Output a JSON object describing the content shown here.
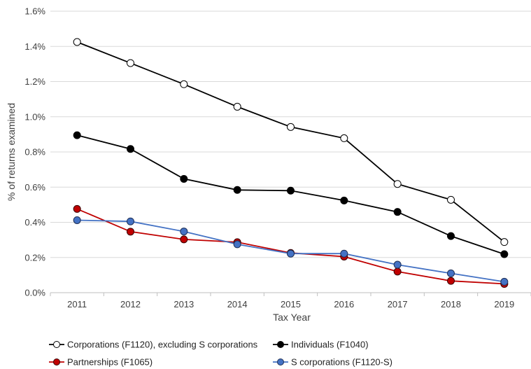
{
  "chart_data": {
    "type": "line",
    "title": "",
    "xlabel": "Tax Year",
    "ylabel": "% of returns examined",
    "x": [
      "2011",
      "2012",
      "2013",
      "2014",
      "2015",
      "2016",
      "2017",
      "2018",
      "2019"
    ],
    "ylim": [
      0,
      1.6
    ],
    "ytick_step": 0.2,
    "ytick_labels": [
      "0.0%",
      "0.2%",
      "0.4%",
      "0.6%",
      "0.8%",
      "1.0%",
      "1.2%",
      "1.4%",
      "1.6%"
    ],
    "grid": "horizontal",
    "legend_position": "bottom",
    "series": [
      {
        "name": "Corporations (F1120), excluding S corporations",
        "line_color": "#000000",
        "marker_fill": "#ffffff",
        "marker_edge": "#000000",
        "values": [
          1.425,
          1.305,
          1.185,
          1.057,
          0.942,
          0.878,
          0.618,
          0.528,
          0.288
        ]
      },
      {
        "name": "Individuals (F1040)",
        "line_color": "#000000",
        "marker_fill": "#000000",
        "marker_edge": "#000000",
        "values": [
          0.895,
          0.817,
          0.647,
          0.584,
          0.58,
          0.524,
          0.459,
          0.322,
          0.219
        ]
      },
      {
        "name": "Partnerships (F1065)",
        "line_color": "#c00000",
        "marker_fill": "#c00000",
        "marker_edge": "#3a0000",
        "values": [
          0.476,
          0.347,
          0.303,
          0.287,
          0.226,
          0.205,
          0.12,
          0.067,
          0.05
        ]
      },
      {
        "name": "S corporations (F1120-S)",
        "line_color": "#4472c4",
        "marker_fill": "#4472c4",
        "marker_edge": "#1f2f55",
        "values": [
          0.412,
          0.405,
          0.348,
          0.275,
          0.222,
          0.222,
          0.159,
          0.11,
          0.062
        ]
      }
    ]
  }
}
